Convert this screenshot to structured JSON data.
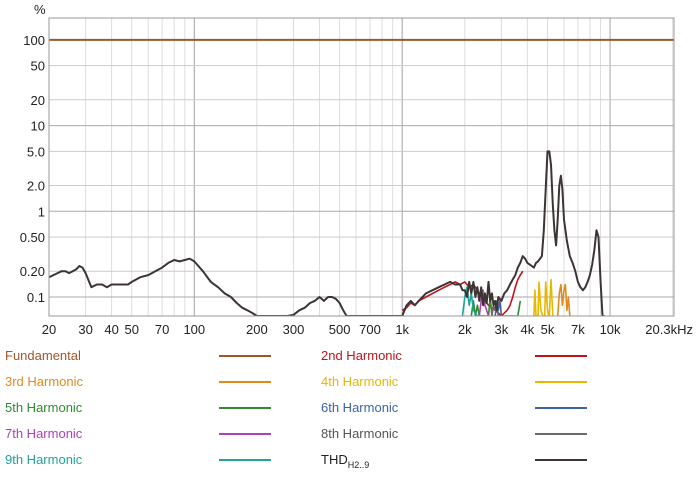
{
  "chart_data": {
    "type": "line",
    "ylabel": "%",
    "xscale": "log",
    "yscale": "log",
    "xlim": [
      20,
      20300
    ],
    "ylim": [
      0.06,
      180
    ],
    "x_ticks": [
      20,
      30,
      40,
      50,
      70,
      100,
      200,
      300,
      500,
      700,
      1000,
      2000,
      3000,
      4000,
      5000,
      7000,
      10000,
      20300
    ],
    "x_tick_labels": [
      "20",
      "30",
      "40",
      "50",
      "70",
      "100",
      "200",
      "300",
      "500",
      "700",
      "1k",
      "2k",
      "3k",
      "4k",
      "5k",
      "7k",
      "10k",
      "20.3kHz"
    ],
    "y_ticks": [
      100,
      50,
      20,
      10,
      5,
      2,
      1,
      0.5,
      0.2,
      0.1
    ],
    "y_tick_labels": [
      "100",
      "50",
      "20",
      "10",
      "5.0",
      "2.0",
      "1",
      "0.50",
      "0.20",
      "0.1"
    ],
    "grid": true,
    "legend_position": "bottom",
    "series": [
      {
        "name": "Fundamental",
        "color": "#a0562a",
        "x": [
          20,
          20300
        ],
        "y": [
          100,
          100
        ]
      },
      {
        "name": "2nd Harmonic",
        "color": "#c0141c",
        "x": [
          1000,
          1050,
          1100,
          1150,
          1200,
          1300,
          1400,
          1500,
          1600,
          1700,
          1800,
          1900,
          2000,
          2100,
          2200,
          2300,
          2400,
          2500,
          2600,
          2700,
          2800,
          2900,
          3000,
          3100,
          3200,
          3300,
          3400,
          3500,
          3600,
          3700,
          3800
        ],
        "y": [
          0.07,
          0.075,
          0.085,
          0.08,
          0.09,
          0.1,
          0.11,
          0.12,
          0.13,
          0.14,
          0.15,
          0.14,
          0.15,
          0.13,
          0.14,
          0.12,
          0.1,
          0.09,
          0.08,
          0.075,
          0.07,
          0.065,
          0.06,
          0.065,
          0.07,
          0.08,
          0.1,
          0.13,
          0.16,
          0.18,
          0.2
        ]
      },
      {
        "name": "3rd Harmonic",
        "color": "#e08a1e",
        "x": [
          5600,
          5700,
          5800,
          5900,
          6000,
          6100,
          6200,
          6300,
          6400,
          6500
        ],
        "y": [
          0.06,
          0.11,
          0.14,
          0.08,
          0.12,
          0.14,
          0.07,
          0.1,
          0.06,
          0.06
        ]
      },
      {
        "name": "4th Harmonic",
        "color": "#e6b800",
        "x": [
          4300,
          4350,
          4400,
          4500,
          4550,
          4650,
          4750,
          4850,
          4900,
          5000,
          5100,
          5200,
          5300
        ],
        "y": [
          0.06,
          0.12,
          0.06,
          0.06,
          0.15,
          0.07,
          0.06,
          0.06,
          0.15,
          0.07,
          0.06,
          0.16,
          0.06
        ]
      },
      {
        "name": "5th Harmonic",
        "color": "#2e8b2e",
        "x": [
          2150,
          2200,
          2250,
          2300,
          2350,
          2600,
          2650,
          2700,
          3600,
          3700
        ],
        "y": [
          0.06,
          0.09,
          0.06,
          0.08,
          0.06,
          0.06,
          0.1,
          0.06,
          0.06,
          0.09
        ]
      },
      {
        "name": "6th Harmonic",
        "color": "#3c64a8",
        "x": [
          2800,
          2850,
          2900,
          2950,
          3000
        ],
        "y": [
          0.06,
          0.08,
          0.07,
          0.09,
          0.06
        ]
      },
      {
        "name": "7th Harmonic",
        "color": "#b03fb8",
        "x": [
          2350,
          2400,
          2450,
          2500,
          2550,
          2600
        ],
        "y": [
          0.06,
          0.09,
          0.12,
          0.08,
          0.07,
          0.06
        ]
      },
      {
        "name": "8th Harmonic",
        "color": "#6a6a6a",
        "x": [
          2700,
          2750,
          2800,
          2850,
          2900
        ],
        "y": [
          0.06,
          0.08,
          0.07,
          0.09,
          0.06
        ]
      },
      {
        "name": "9th Harmonic",
        "color": "#1fa39b",
        "x": [
          1950,
          2000,
          2050,
          2100,
          2150,
          2200,
          2300,
          2400,
          2500
        ],
        "y": [
          0.06,
          0.1,
          0.13,
          0.08,
          0.11,
          0.07,
          0.06,
          0.06,
          0.06
        ]
      },
      {
        "name": "THDH2..9",
        "color": "#3d3434",
        "x": [
          20,
          21,
          22,
          23,
          24,
          25,
          26,
          27,
          28,
          29,
          30,
          32,
          34,
          36,
          38,
          40,
          42,
          45,
          48,
          50,
          55,
          60,
          65,
          70,
          75,
          80,
          85,
          90,
          95,
          100,
          110,
          120,
          130,
          140,
          150,
          160,
          170,
          180,
          190,
          200,
          220,
          240,
          260,
          280,
          300,
          320,
          340,
          360,
          380,
          400,
          420,
          440,
          460,
          480,
          500,
          520,
          540,
          1000,
          1050,
          1100,
          1150,
          1200,
          1300,
          1400,
          1500,
          1600,
          1700,
          1800,
          1900,
          1950,
          2000,
          2050,
          2100,
          2150,
          2200,
          2250,
          2300,
          2350,
          2400,
          2450,
          2500,
          2550,
          2600,
          2650,
          2700,
          2750,
          2800,
          2850,
          2900,
          3000,
          3100,
          3200,
          3300,
          3400,
          3500,
          3600,
          3700,
          3800,
          3900,
          4000,
          4100,
          4200,
          4300,
          4400,
          4500,
          4600,
          4700,
          4800,
          4900,
          5000,
          5100,
          5200,
          5300,
          5400,
          5500,
          5600,
          5700,
          5800,
          5900,
          6000,
          6200,
          6400,
          6600,
          6800,
          7000,
          7200,
          7400,
          7600,
          7800,
          8000,
          8200,
          8400,
          8600,
          8800,
          9000,
          9200,
          9400
        ],
        "y": [
          0.17,
          0.18,
          0.19,
          0.2,
          0.2,
          0.19,
          0.2,
          0.21,
          0.23,
          0.22,
          0.19,
          0.13,
          0.14,
          0.14,
          0.13,
          0.14,
          0.14,
          0.14,
          0.14,
          0.15,
          0.17,
          0.18,
          0.2,
          0.22,
          0.25,
          0.27,
          0.26,
          0.27,
          0.28,
          0.26,
          0.2,
          0.15,
          0.13,
          0.11,
          0.1,
          0.085,
          0.075,
          0.07,
          0.065,
          0.06,
          0.06,
          0.06,
          0.06,
          0.06,
          0.062,
          0.07,
          0.075,
          0.085,
          0.09,
          0.1,
          0.09,
          0.1,
          0.1,
          0.095,
          0.085,
          0.07,
          0.06,
          0.06,
          0.08,
          0.09,
          0.08,
          0.09,
          0.11,
          0.12,
          0.13,
          0.14,
          0.15,
          0.14,
          0.14,
          0.12,
          0.12,
          0.1,
          0.15,
          0.11,
          0.15,
          0.1,
          0.13,
          0.09,
          0.13,
          0.08,
          0.11,
          0.085,
          0.15,
          0.09,
          0.11,
          0.08,
          0.09,
          0.07,
          0.1,
          0.09,
          0.11,
          0.12,
          0.14,
          0.16,
          0.18,
          0.22,
          0.25,
          0.3,
          0.28,
          0.25,
          0.24,
          0.23,
          0.22,
          0.25,
          0.26,
          0.28,
          0.3,
          0.6,
          1.8,
          5.0,
          5.0,
          3.5,
          1.2,
          0.6,
          0.4,
          0.8,
          2.0,
          2.6,
          1.8,
          0.8,
          0.45,
          0.3,
          0.25,
          0.2,
          0.15,
          0.13,
          0.12,
          0.13,
          0.15,
          0.18,
          0.24,
          0.35,
          0.6,
          0.5,
          0.15,
          0.06,
          0.06
        ]
      }
    ]
  },
  "legend": [
    {
      "label": "Fundamental",
      "color": "#a0562a"
    },
    {
      "label": "2nd Harmonic",
      "color": "#c0141c"
    },
    {
      "label": "3rd Harmonic",
      "color": "#e08a1e"
    },
    {
      "label": "4th Harmonic",
      "color": "#e6b800"
    },
    {
      "label": "5th Harmonic",
      "color": "#2e8b2e"
    },
    {
      "label": "6th Harmonic",
      "color": "#3c64a8"
    },
    {
      "label": "7th Harmonic",
      "color": "#b03fb8"
    },
    {
      "label": "8th Harmonic",
      "color": "#6a6a6a"
    },
    {
      "label": "9th Harmonic",
      "color": "#1fa39b"
    },
    {
      "label": "THD",
      "label_sub": "H2..9",
      "color": "#3d3434"
    }
  ]
}
